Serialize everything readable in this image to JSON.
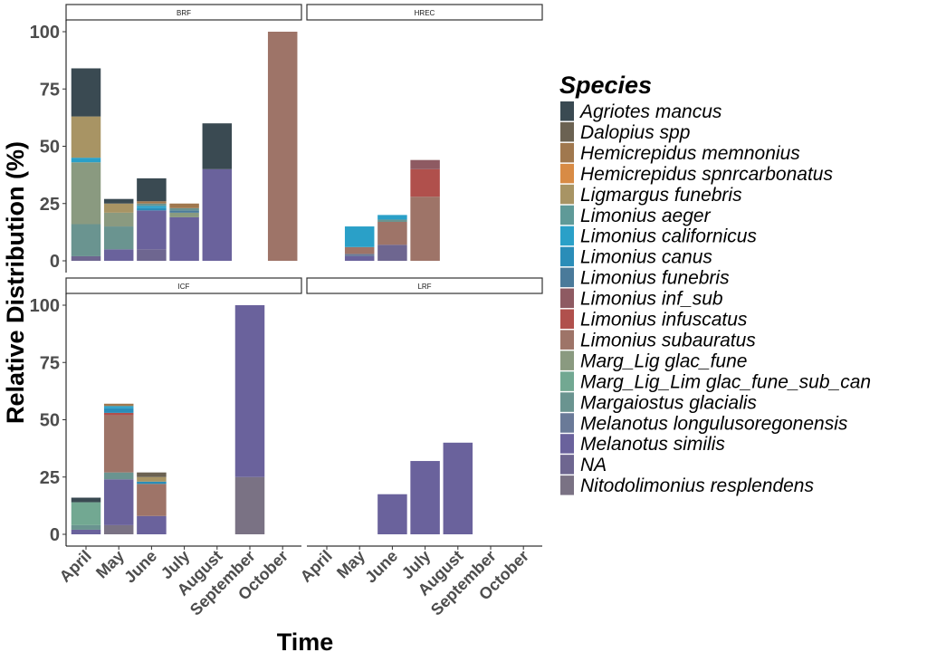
{
  "chart_data": {
    "type": "bar",
    "stacked": true,
    "title": "",
    "xlabel": "Time",
    "ylabel": "Relative Distribution (%)",
    "ylim": [
      0,
      100
    ],
    "yticks": [
      0,
      25,
      50,
      75,
      100
    ],
    "categories": [
      "April",
      "May",
      "June",
      "July",
      "August",
      "September",
      "October"
    ],
    "legend": {
      "title": "Species",
      "position": "right",
      "entries": [
        {
          "name": "Agriotes mancus",
          "color": "#3a4a52"
        },
        {
          "name": "Dalopius spp",
          "color": "#6b6252"
        },
        {
          "name": "Hemicrepidus memnonius",
          "color": "#a0784e"
        },
        {
          "name": "Hemicrepidus spnrcarbonatus",
          "color": "#d88b45"
        },
        {
          "name": "Ligmargus funebris",
          "color": "#a89464"
        },
        {
          "name": "Limonius aeger",
          "color": "#5f9a98"
        },
        {
          "name": "Limonius californicus",
          "color": "#2aa0c8"
        },
        {
          "name": "Limonius canus",
          "color": "#2a8db8"
        },
        {
          "name": "Limonius funebris",
          "color": "#4a7a9a"
        },
        {
          "name": "Limonius inf_sub",
          "color": "#8e5a62"
        },
        {
          "name": "Limonius infuscatus",
          "color": "#b0504c"
        },
        {
          "name": "Limonius subauratus",
          "color": "#9e7468"
        },
        {
          "name": "Marg_Lig glac_fune",
          "color": "#8a9a80"
        },
        {
          "name": "Marg_Lig_Lim glac_fune_sub_can",
          "color": "#72a892"
        },
        {
          "name": "Margaiostus glacialis",
          "color": "#6a9490"
        },
        {
          "name": "Melanotus longulusoregonensis",
          "color": "#6a7a98"
        },
        {
          "name": "Melanotus similis",
          "color": "#6a629c"
        },
        {
          "name": "NA",
          "color": "#6e6690"
        },
        {
          "name": "Nitodolimonius resplendens",
          "color": "#7a7284"
        }
      ]
    },
    "facets": [
      {
        "name": "BRF",
        "bars": [
          {
            "month": "April",
            "stack": [
              [
                "NA",
                2
              ],
              [
                "Margaiostus glacialis",
                14
              ],
              [
                "Marg_Lig glac_fune",
                27
              ],
              [
                "Limonius californicus",
                2
              ],
              [
                "Ligmargus funebris",
                18
              ],
              [
                "Agriotes mancus",
                21
              ]
            ]
          },
          {
            "month": "May",
            "stack": [
              [
                "Melanotus similis",
                5
              ],
              [
                "Margaiostus glacialis",
                10
              ],
              [
                "Marg_Lig glac_fune",
                6
              ],
              [
                "Ligmargus funebris",
                4
              ],
              [
                "Agriotes mancus",
                2
              ]
            ]
          },
          {
            "month": "June",
            "stack": [
              [
                "NA",
                5
              ],
              [
                "Melanotus similis",
                17
              ],
              [
                "Limonius canus",
                1
              ],
              [
                "Limonius californicus",
                1
              ],
              [
                "Margaiostus glacialis",
                1
              ],
              [
                "Hemicrepidus memnonius",
                1
              ],
              [
                "Agriotes mancus",
                10
              ]
            ]
          },
          {
            "month": "July",
            "stack": [
              [
                "Melanotus similis",
                19
              ],
              [
                "Marg_Lig glac_fune",
                2
              ],
              [
                "Limonius funebris",
                1
              ],
              [
                "Margaiostus glacialis",
                1
              ],
              [
                "Hemicrepidus memnonius",
                2
              ]
            ]
          },
          {
            "month": "August",
            "stack": [
              [
                "Melanotus similis",
                40
              ],
              [
                "Agriotes mancus",
                20
              ]
            ]
          },
          {
            "month": "September",
            "stack": []
          },
          {
            "month": "October",
            "stack": [
              [
                "Limonius subauratus",
                100
              ]
            ]
          }
        ]
      },
      {
        "name": "HREC",
        "bars": [
          {
            "month": "April",
            "stack": []
          },
          {
            "month": "May",
            "stack": [
              [
                "Melanotus similis",
                2
              ],
              [
                "Melanotus longulusoregonensis",
                1
              ],
              [
                "Limonius subauratus",
                3
              ],
              [
                "Limonius californicus",
                9
              ]
            ]
          },
          {
            "month": "June",
            "stack": [
              [
                "NA",
                7
              ],
              [
                "Limonius subauratus",
                10
              ],
              [
                "Margaiostus glacialis",
                1
              ],
              [
                "Limonius californicus",
                2
              ]
            ]
          },
          {
            "month": "July",
            "stack": [
              [
                "Limonius subauratus",
                28
              ],
              [
                "Limonius infuscatus",
                12
              ],
              [
                "Limonius inf_sub",
                4
              ]
            ]
          },
          {
            "month": "August",
            "stack": []
          },
          {
            "month": "September",
            "stack": []
          },
          {
            "month": "October",
            "stack": []
          }
        ]
      },
      {
        "name": "ICF",
        "bars": [
          {
            "month": "April",
            "stack": [
              [
                "Melanotus similis",
                2
              ],
              [
                "Margaiostus glacialis",
                2
              ],
              [
                "Marg_Lig_Lim glac_fune_sub_can",
                10
              ],
              [
                "Agriotes mancus",
                2
              ]
            ]
          },
          {
            "month": "May",
            "stack": [
              [
                "Nitodolimonius resplendens",
                4
              ],
              [
                "Melanotus similis",
                20
              ],
              [
                "Margaiostus glacialis",
                3
              ],
              [
                "Limonius subauratus",
                25
              ],
              [
                "Limonius infuscatus",
                1
              ],
              [
                "Limonius canus",
                2
              ],
              [
                "Limonius californicus",
                1
              ],
              [
                "Hemicrepidus memnonius",
                1
              ]
            ]
          },
          {
            "month": "June",
            "stack": [
              [
                "Melanotus similis",
                8
              ],
              [
                "Limonius subauratus",
                14
              ],
              [
                "Limonius canus",
                1
              ],
              [
                "Ligmargus funebris",
                2
              ],
              [
                "Dalopius spp",
                2
              ]
            ]
          },
          {
            "month": "July",
            "stack": []
          },
          {
            "month": "August",
            "stack": []
          },
          {
            "month": "September",
            "stack": [
              [
                "Nitodolimonius resplendens",
                25
              ],
              [
                "Melanotus similis",
                75
              ]
            ]
          },
          {
            "month": "October",
            "stack": []
          }
        ]
      },
      {
        "name": "LRF",
        "bars": [
          {
            "month": "April",
            "stack": []
          },
          {
            "month": "May",
            "stack": []
          },
          {
            "month": "June",
            "stack": [
              [
                "Melanotus similis",
                17.5
              ]
            ]
          },
          {
            "month": "July",
            "stack": [
              [
                "Melanotus similis",
                32
              ]
            ]
          },
          {
            "month": "August",
            "stack": [
              [
                "Melanotus similis",
                40
              ]
            ]
          },
          {
            "month": "September",
            "stack": []
          },
          {
            "month": "October",
            "stack": []
          }
        ]
      }
    ]
  }
}
